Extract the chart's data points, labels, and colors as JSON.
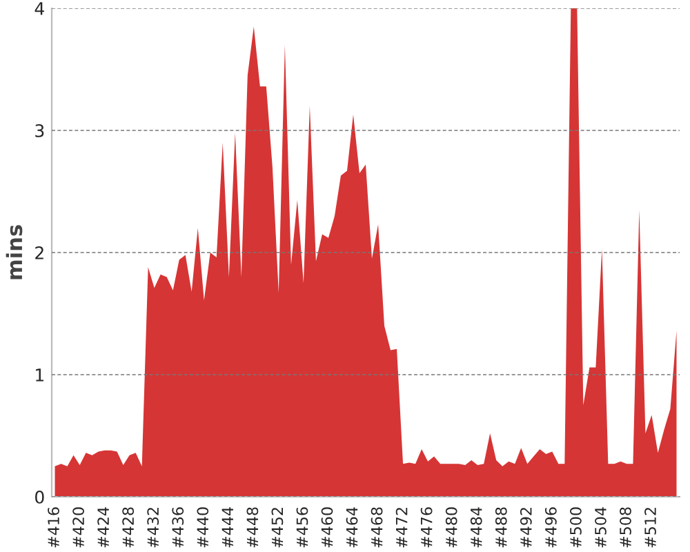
{
  "chart_data": {
    "type": "area",
    "ylabel": "mins",
    "color": "#d63535",
    "categories": [
      "#416",
      null,
      null,
      null,
      "#420",
      null,
      null,
      null,
      "#424",
      null,
      null,
      null,
      "#428",
      null,
      null,
      null,
      "#432",
      null,
      null,
      null,
      "#436",
      null,
      null,
      null,
      "#440",
      null,
      null,
      null,
      "#444",
      null,
      null,
      null,
      "#448",
      null,
      null,
      null,
      "#452",
      null,
      null,
      null,
      "#456",
      null,
      null,
      null,
      "#460",
      null,
      null,
      null,
      "#464",
      null,
      null,
      null,
      "#468",
      null,
      null,
      null,
      "#472",
      null,
      null,
      null,
      "#476",
      null,
      null,
      null,
      "#480",
      null,
      null,
      null,
      "#484",
      null,
      null,
      null,
      "#488",
      null,
      null,
      null,
      "#492",
      null,
      null,
      null,
      "#496",
      null,
      null,
      null,
      "#500",
      null,
      null,
      null,
      "#504",
      null,
      null,
      null,
      "#508",
      null,
      null,
      null,
      "#512",
      null,
      null,
      null,
      null
    ],
    "values": [
      0.25,
      0.27,
      0.25,
      0.34,
      0.26,
      0.36,
      0.34,
      0.37,
      0.38,
      0.38,
      0.37,
      0.26,
      0.34,
      0.36,
      0.25,
      1.88,
      1.71,
      1.82,
      1.8,
      1.69,
      1.94,
      1.98,
      1.68,
      2.2,
      1.61,
      2.0,
      1.96,
      2.9,
      1.8,
      2.98,
      1.8,
      3.45,
      3.85,
      3.36,
      3.36,
      2.7,
      1.67,
      3.7,
      1.9,
      2.43,
      1.75,
      3.2,
      1.93,
      2.15,
      2.12,
      2.3,
      2.63,
      2.67,
      3.13,
      2.65,
      2.72,
      1.95,
      2.23,
      1.4,
      1.2,
      1.21,
      0.27,
      0.28,
      0.27,
      0.39,
      0.29,
      0.33,
      0.27,
      0.27,
      0.27,
      0.27,
      0.26,
      0.3,
      0.26,
      0.27,
      0.52,
      0.3,
      0.25,
      0.29,
      0.27,
      0.4,
      0.27,
      0.33,
      0.39,
      0.35,
      0.37,
      0.27,
      0.27,
      4.0,
      4.0,
      0.75,
      1.06,
      1.06,
      2.03,
      0.27,
      0.27,
      0.29,
      0.27,
      0.27,
      2.35,
      0.52,
      0.67,
      0.36,
      0.55,
      0.72,
      1.36
    ],
    "ylim": [
      0,
      4
    ],
    "yticks": [
      0,
      1,
      2,
      3,
      4
    ],
    "grid": "y",
    "line_style": "dashed"
  }
}
